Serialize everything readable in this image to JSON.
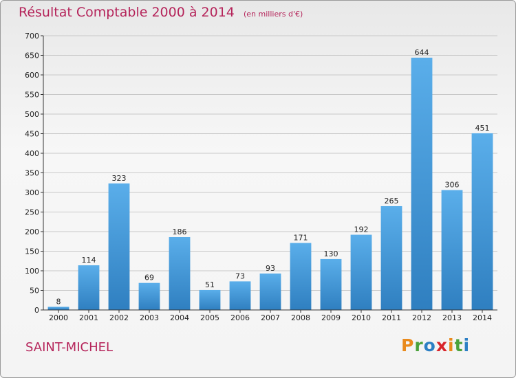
{
  "title": "Résultat Comptable 2000 à 2014",
  "subtitle": "(en milliers d'€)",
  "commune": "SAINT-MICHEL",
  "logo": {
    "text": "Proxiti",
    "letters": [
      {
        "ch": "P",
        "color": "#e98a1c"
      },
      {
        "ch": "r",
        "color": "#4aa23b"
      },
      {
        "ch": "o",
        "color": "#2c7fc4"
      },
      {
        "ch": "x",
        "color": "#d8232a"
      },
      {
        "ch": "i",
        "color": "#e98a1c"
      },
      {
        "ch": "t",
        "color": "#4aa23b"
      },
      {
        "ch": "i",
        "color": "#2c7fc4"
      }
    ]
  },
  "colors": {
    "title": "#b5245a",
    "bar_top": "#5aaeea",
    "bar_bottom": "#2f7fc0",
    "grid": "#c8c8c8",
    "axis": "#333333"
  },
  "chart_data": {
    "type": "bar",
    "title": "Résultat Comptable 2000 à 2014",
    "subtitle": "(en milliers d'€)",
    "xlabel": "",
    "ylabel": "",
    "categories": [
      "2000",
      "2001",
      "2002",
      "2003",
      "2004",
      "2005",
      "2006",
      "2007",
      "2008",
      "2009",
      "2010",
      "2011",
      "2012",
      "2013",
      "2014"
    ],
    "values": [
      8,
      114,
      323,
      69,
      186,
      51,
      73,
      93,
      171,
      130,
      192,
      265,
      644,
      306,
      451
    ],
    "ylim": [
      0,
      700
    ],
    "yticks": [
      0,
      50,
      100,
      150,
      200,
      250,
      300,
      350,
      400,
      450,
      500,
      550,
      600,
      650,
      700
    ],
    "grid": true,
    "legend": "none"
  }
}
